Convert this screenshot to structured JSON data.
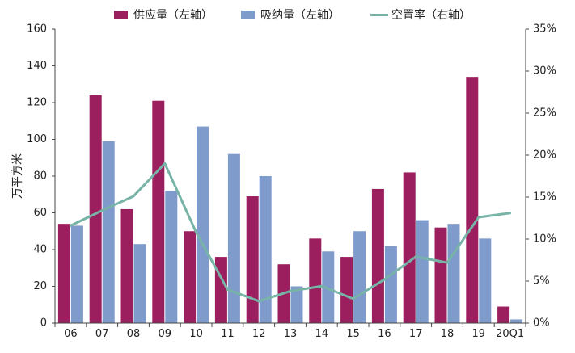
{
  "chart_data": {
    "type": "bar",
    "categories": [
      "06",
      "07",
      "08",
      "09",
      "10",
      "11",
      "12",
      "13",
      "14",
      "15",
      "16",
      "17",
      "18",
      "19",
      "20Q1"
    ],
    "series": [
      {
        "name": "供应量（左轴）",
        "type": "bar",
        "axis": "left",
        "color": "#9B1F5E",
        "values": [
          54,
          124,
          62,
          121,
          50,
          36,
          69,
          32,
          46,
          36,
          73,
          82,
          52,
          134,
          9
        ]
      },
      {
        "name": "吸纳量（左轴）",
        "type": "bar",
        "axis": "left",
        "color": "#7F9BCB",
        "values": [
          53,
          99,
          43,
          72,
          107,
          92,
          80,
          20,
          39,
          50,
          42,
          56,
          54,
          46,
          2
        ]
      },
      {
        "name": "空置率（右轴）",
        "type": "line",
        "axis": "right",
        "color": "#77B3A6",
        "values": [
          11.6,
          13.4,
          15.1,
          19.0,
          10.8,
          4.0,
          2.6,
          3.8,
          4.4,
          2.9,
          5.2,
          7.9,
          7.2,
          12.6,
          13.1
        ]
      }
    ],
    "ylabel": "万平方米",
    "y_left": {
      "min": 0,
      "max": 160,
      "ticks": [
        "0",
        "20",
        "40",
        "60",
        "80",
        "100",
        "120",
        "140",
        "160"
      ]
    },
    "y_right": {
      "min": 0,
      "max": 35,
      "ticks": [
        "0%",
        "5%",
        "10%",
        "15%",
        "20%",
        "25%",
        "30%",
        "35%"
      ]
    },
    "legend_position": "top",
    "grid": false
  }
}
